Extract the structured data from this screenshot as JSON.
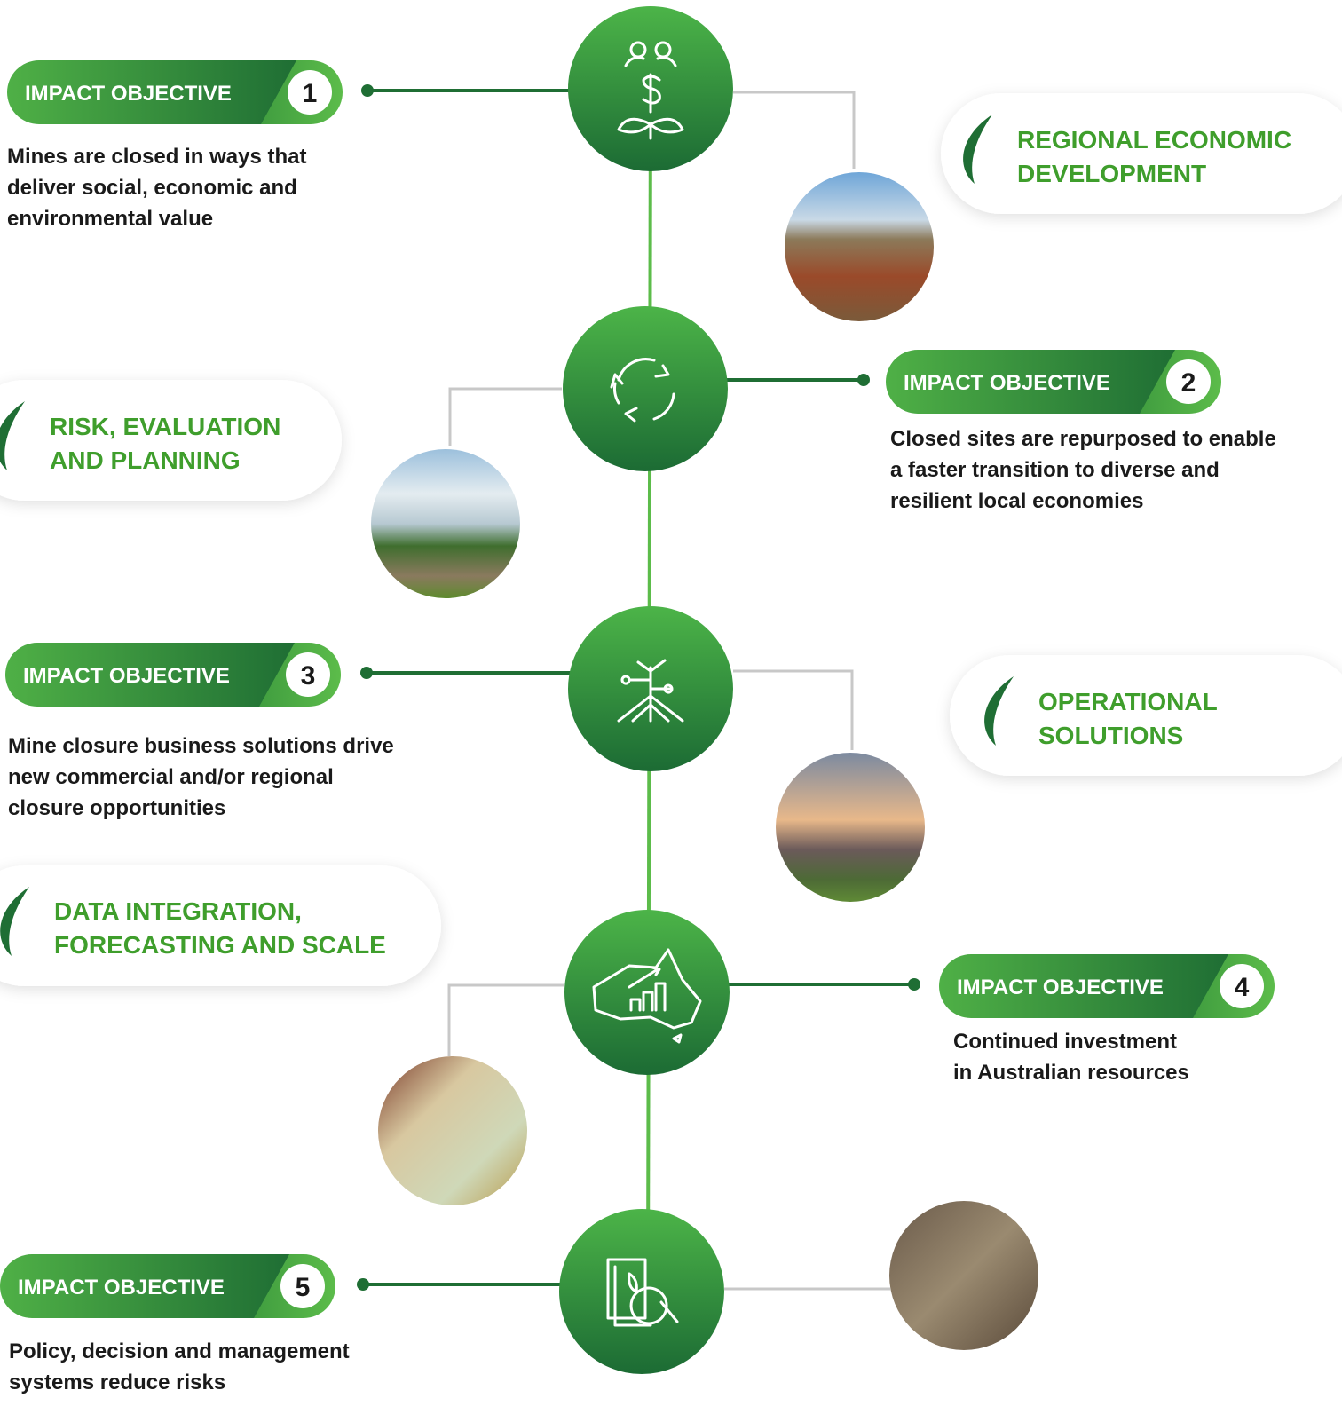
{
  "objectives": [
    {
      "label": "IMPACT OBJECTIVE",
      "number": "1",
      "description": [
        "Mines are closed in ways that",
        "deliver social, economic and",
        "environmental value"
      ]
    },
    {
      "label": "IMPACT OBJECTIVE",
      "number": "2",
      "description": [
        "Closed sites are repurposed to enable",
        "a faster transition to diverse and",
        "resilient local economies"
      ]
    },
    {
      "label": "IMPACT OBJECTIVE",
      "number": "3",
      "description": [
        "Mine closure business solutions drive",
        "new commercial and/or regional",
        "closure opportunities"
      ]
    },
    {
      "label": "IMPACT OBJECTIVE",
      "number": "4",
      "description": [
        "Continued investment",
        "in Australian resources"
      ]
    },
    {
      "label": "IMPACT OBJECTIVE",
      "number": "5",
      "description": [
        "Policy, decision and management",
        "systems reduce risks"
      ]
    }
  ],
  "themes": [
    {
      "title": [
        "REGIONAL ECONOMIC",
        "DEVELOPMENT"
      ]
    },
    {
      "title": [
        "RISK, EVALUATION",
        "AND PLANNING"
      ]
    },
    {
      "title": [
        "OPERATIONAL",
        "SOLUTIONS"
      ]
    },
    {
      "title": [
        "DATA INTEGRATION,",
        "FORECASTING AND SCALE"
      ]
    }
  ]
}
